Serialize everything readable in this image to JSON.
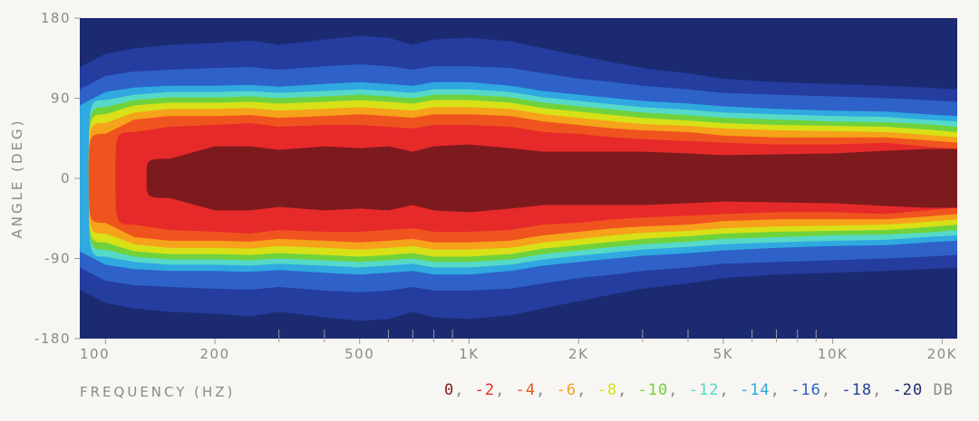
{
  "chart_data": {
    "type": "heatmap",
    "title": "",
    "xlabel": "FREQUENCY (HZ)",
    "ylabel": "ANGLE (DEG)",
    "x_scale": "log",
    "xlim": [
      85,
      22000
    ],
    "ylim": [
      -180,
      180
    ],
    "x_ticks": [
      {
        "value": 100,
        "label": "100"
      },
      {
        "value": 200,
        "label": "200"
      },
      {
        "value": 500,
        "label": "500"
      },
      {
        "value": 1000,
        "label": "1K"
      },
      {
        "value": 2000,
        "label": "2K"
      },
      {
        "value": 5000,
        "label": "5K"
      },
      {
        "value": 10000,
        "label": "10K"
      },
      {
        "value": 20000,
        "label": "20K"
      }
    ],
    "x_minor_ticks": [
      300,
      400,
      600,
      700,
      800,
      900,
      3000,
      4000,
      6000,
      7000,
      8000,
      9000
    ],
    "y_ticks": [
      {
        "value": 180,
        "label": "180"
      },
      {
        "value": 90,
        "label": "90"
      },
      {
        "value": 0,
        "label": "0"
      },
      {
        "value": -90,
        "label": "-90"
      },
      {
        "value": -180,
        "label": "-180"
      }
    ],
    "legend": {
      "unit": "DB",
      "levels": [
        {
          "label": "0",
          "color": "#7d1a1d"
        },
        {
          "label": "-2",
          "color": "#e62a2a"
        },
        {
          "label": "-4",
          "color": "#f0541e"
        },
        {
          "label": "-6",
          "color": "#f6a21a"
        },
        {
          "label": "-8",
          "color": "#d8e018"
        },
        {
          "label": "-10",
          "color": "#6fd23c"
        },
        {
          "label": "-12",
          "color": "#56d9c8"
        },
        {
          "label": "-14",
          "color": "#2fa9e0"
        },
        {
          "label": "-16",
          "color": "#2e62c8"
        },
        {
          "label": "-18",
          "color": "#243d9e"
        },
        {
          "label": "-20",
          "color": "#1c2a72"
        }
      ]
    },
    "contour_half_width_deg": {
      "freq_hz": [
        85,
        100,
        120,
        150,
        200,
        250,
        300,
        400,
        500,
        600,
        700,
        800,
        1000,
        1300,
        1600,
        2000,
        2500,
        3000,
        4000,
        5000,
        7000,
        10000,
        14000,
        18000,
        22000
      ],
      "0": [
        null,
        null,
        null,
        22,
        36,
        36,
        32,
        36,
        34,
        36,
        30,
        36,
        38,
        34,
        30,
        30,
        30,
        30,
        28,
        26,
        27,
        28,
        31,
        33,
        33
      ],
      "-2": [
        null,
        null,
        52,
        58,
        60,
        62,
        58,
        60,
        60,
        58,
        56,
        60,
        60,
        58,
        52,
        50,
        46,
        44,
        42,
        40,
        38,
        38,
        40,
        36,
        33
      ],
      "-4": [
        null,
        50,
        66,
        70,
        70,
        71,
        68,
        70,
        72,
        70,
        68,
        72,
        72,
        70,
        64,
        60,
        56,
        54,
        52,
        48,
        46,
        46,
        46,
        43,
        40
      ],
      "-6": [
        null,
        62,
        74,
        78,
        78,
        79,
        76,
        78,
        80,
        78,
        76,
        80,
        80,
        78,
        72,
        68,
        64,
        61,
        59,
        56,
        54,
        53,
        52,
        49,
        46
      ],
      "-8": [
        null,
        72,
        82,
        85,
        85,
        86,
        84,
        86,
        88,
        86,
        84,
        88,
        88,
        85,
        79,
        75,
        71,
        68,
        65,
        62,
        60,
        59,
        58,
        55,
        52
      ],
      "-10": [
        null,
        80,
        88,
        91,
        91,
        92,
        90,
        92,
        94,
        92,
        90,
        94,
        94,
        91,
        85,
        81,
        77,
        74,
        71,
        68,
        66,
        64,
        63,
        61,
        58
      ],
      "-12": [
        null,
        88,
        94,
        97,
        97,
        98,
        96,
        98,
        100,
        98,
        96,
        100,
        100,
        97,
        91,
        87,
        83,
        80,
        77,
        74,
        72,
        70,
        69,
        66,
        64
      ],
      "-14": [
        82,
        97,
        102,
        104,
        104,
        105,
        103,
        106,
        108,
        106,
        104,
        108,
        108,
        104,
        98,
        94,
        90,
        87,
        84,
        81,
        78,
        76,
        75,
        72,
        70
      ],
      "-16": [
        100,
        115,
        120,
        122,
        124,
        125,
        122,
        126,
        128,
        126,
        122,
        126,
        126,
        124,
        118,
        112,
        108,
        104,
        100,
        96,
        94,
        92,
        90,
        88,
        86
      ],
      "-18": [
        125,
        140,
        146,
        150,
        152,
        155,
        150,
        156,
        160,
        158,
        150,
        156,
        158,
        154,
        146,
        138,
        130,
        124,
        118,
        112,
        108,
        106,
        104,
        102,
        100
      ]
    }
  }
}
